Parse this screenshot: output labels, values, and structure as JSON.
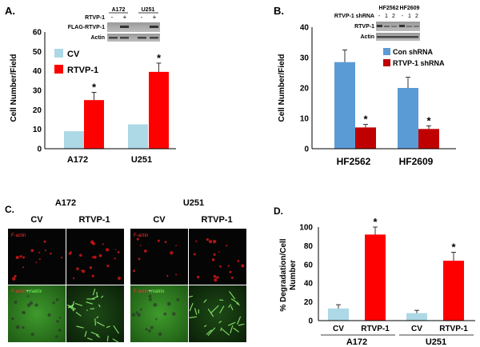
{
  "panels": {
    "A": {
      "label": "A.",
      "ylabel": "Cell Number/Field",
      "yticks": [
        "0",
        "10",
        "20",
        "30",
        "40",
        "50",
        "60"
      ],
      "legend": [
        {
          "label": "CV",
          "color": "#add8e6"
        },
        {
          "label": "RTVP-1",
          "color": "#ff0000"
        }
      ],
      "blot": {
        "col_headers": [
          "A172",
          "U251"
        ],
        "row_label_top": "RTVP-1",
        "lane_signs": [
          "-",
          "+",
          "-",
          "+"
        ],
        "rows": [
          "FLAG-RTVP-1",
          "Actin"
        ]
      }
    },
    "B": {
      "label": "B.",
      "ylabel": "Cell Number/Field",
      "yticks": [
        "0",
        "10",
        "20",
        "30",
        "40"
      ],
      "legend": [
        {
          "label": "Con shRNA",
          "color": "#5b9bd5"
        },
        {
          "label": "RTVP-1 shRNA",
          "color": "#c00000"
        }
      ],
      "blot": {
        "col_headers": [
          "HF2562",
          "HF2609"
        ],
        "row_label_top": "RTVP-1 shRNA",
        "lane_signs": [
          "-",
          "1",
          "2",
          "-",
          "1",
          "2"
        ],
        "rows": [
          "RTVP-1",
          "Actin"
        ]
      }
    },
    "C": {
      "label": "C.",
      "groups": [
        "A172",
        "U251"
      ],
      "col_labels": [
        "CV",
        "RTVP-1",
        "CV",
        "RTVP-1"
      ],
      "stain_top": "F-actin",
      "stain_bottom_a": "F-actin",
      "stain_bottom_plus": "+",
      "stain_bottom_b": "matrix"
    },
    "D": {
      "label": "D.",
      "ylabel_line1": "% Degradation/Cell",
      "ylabel_line2": "Number",
      "yticks": [
        "0",
        "20",
        "40",
        "60",
        "80",
        "100"
      ],
      "groups": [
        "A172",
        "U251"
      ],
      "col_labels": [
        "CV",
        "RTVP-1",
        "CV",
        "RTVP-1"
      ]
    }
  },
  "chart_data": [
    {
      "type": "bar",
      "panel": "A",
      "categories": [
        "A172",
        "U251"
      ],
      "series": [
        {
          "name": "CV",
          "values": [
            9,
            12.5
          ],
          "errors": [
            0,
            0
          ],
          "color": "#add8e6"
        },
        {
          "name": "RTVP-1",
          "values": [
            25,
            39.5
          ],
          "errors": [
            4,
            4.5
          ],
          "color": "#ff0000"
        }
      ],
      "significance": [
        "*",
        "*"
      ],
      "ylabel": "Cell Number/Field",
      "ylim": [
        0,
        60
      ]
    },
    {
      "type": "bar",
      "panel": "B",
      "categories": [
        "HF2562",
        "HF2609"
      ],
      "series": [
        {
          "name": "Con shRNA",
          "values": [
            28.5,
            20
          ],
          "errors": [
            4,
            3.5
          ],
          "color": "#5b9bd5"
        },
        {
          "name": "RTVP-1 shRNA",
          "values": [
            7,
            6.5
          ],
          "errors": [
            1,
            1
          ],
          "color": "#c00000"
        }
      ],
      "significance": [
        "*",
        "*"
      ],
      "ylabel": "Cell Number/Field",
      "ylim": [
        0,
        40
      ]
    },
    {
      "type": "bar",
      "panel": "D",
      "categories": [
        "A172",
        "U251"
      ],
      "series": [
        {
          "name": "CV",
          "values": [
            13,
            8
          ],
          "errors": [
            4,
            3
          ],
          "color": "#add8e6"
        },
        {
          "name": "RTVP-1",
          "values": [
            92,
            64
          ],
          "errors": [
            8,
            9
          ],
          "color": "#ff0000"
        }
      ],
      "significance": [
        "*",
        "*"
      ],
      "ylabel": "% Degradation/Cell Number",
      "ylim": [
        0,
        100
      ]
    }
  ]
}
